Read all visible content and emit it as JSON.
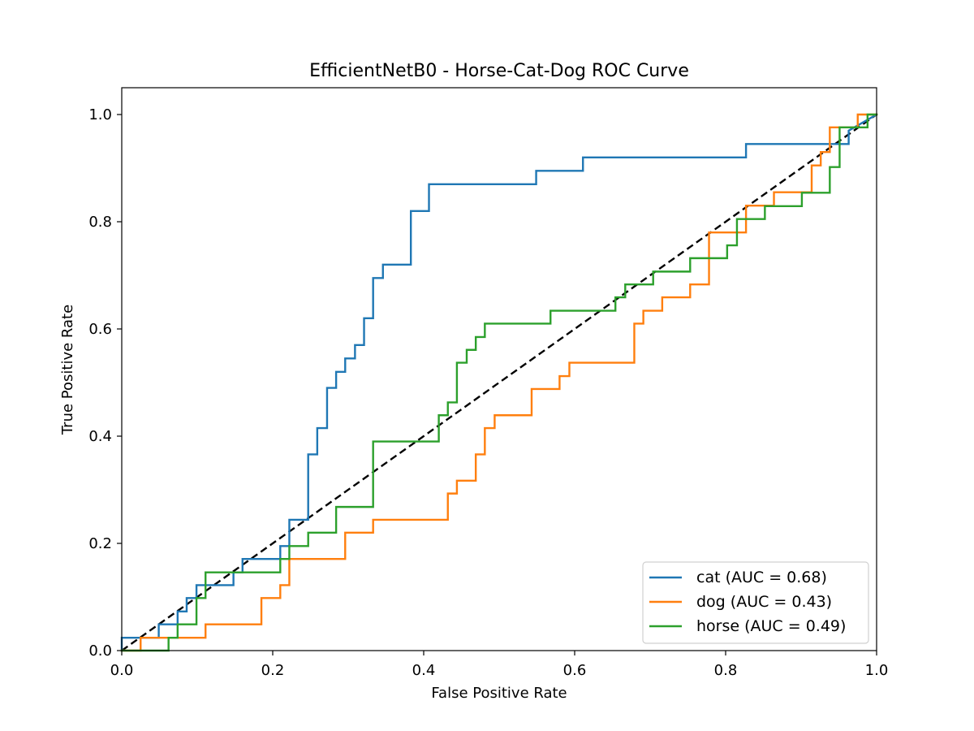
{
  "chart_data": {
    "type": "line",
    "title": "EfficientNetB0 - Horse-Cat-Dog ROC Curve",
    "xlabel": "False Positive Rate",
    "ylabel": "True Positive Rate",
    "xlim": [
      0.0,
      1.0
    ],
    "ylim": [
      0.0,
      1.05
    ],
    "xticks": [
      "0.0",
      "0.2",
      "0.4",
      "0.6",
      "0.8",
      "1.0"
    ],
    "yticks": [
      "0.0",
      "0.2",
      "0.4",
      "0.6",
      "0.8",
      "1.0"
    ],
    "grid": false,
    "legend_position": "lower-right",
    "reference_line": {
      "x": [
        0,
        1
      ],
      "y": [
        0,
        1
      ],
      "color": "#000000",
      "dashed": true
    },
    "series": [
      {
        "name": "cat (AUC = 0.68)",
        "color": "#1f77b4",
        "x": [
          0.0,
          0.0,
          0.049,
          0.049,
          0.074,
          0.074,
          0.086,
          0.086,
          0.099,
          0.099,
          0.148,
          0.148,
          0.16,
          0.16,
          0.21,
          0.21,
          0.222,
          0.222,
          0.247,
          0.247,
          0.259,
          0.259,
          0.272,
          0.272,
          0.284,
          0.284,
          0.296,
          0.296,
          0.309,
          0.309,
          0.321,
          0.321,
          0.333,
          0.333,
          0.346,
          0.346,
          0.383,
          0.383,
          0.407,
          0.407,
          0.549,
          0.549,
          0.611,
          0.611,
          0.827,
          0.827,
          0.963,
          0.963,
          1.0
        ],
        "y": [
          0.0,
          0.024,
          0.024,
          0.049,
          0.049,
          0.073,
          0.073,
          0.098,
          0.098,
          0.122,
          0.122,
          0.146,
          0.146,
          0.171,
          0.171,
          0.195,
          0.195,
          0.244,
          0.244,
          0.366,
          0.366,
          0.415,
          0.415,
          0.49,
          0.49,
          0.52,
          0.52,
          0.545,
          0.545,
          0.57,
          0.57,
          0.62,
          0.62,
          0.695,
          0.695,
          0.72,
          0.72,
          0.82,
          0.82,
          0.87,
          0.87,
          0.895,
          0.895,
          0.92,
          0.92,
          0.945,
          0.945,
          0.97,
          1.0
        ]
      },
      {
        "name": "dog (AUC = 0.43)",
        "color": "#ff7f0e",
        "x": [
          0.0,
          0.025,
          0.025,
          0.111,
          0.111,
          0.185,
          0.185,
          0.21,
          0.21,
          0.222,
          0.222,
          0.296,
          0.296,
          0.333,
          0.333,
          0.432,
          0.432,
          0.444,
          0.444,
          0.469,
          0.469,
          0.481,
          0.481,
          0.494,
          0.494,
          0.543,
          0.543,
          0.58,
          0.58,
          0.593,
          0.593,
          0.679,
          0.679,
          0.691,
          0.691,
          0.716,
          0.716,
          0.753,
          0.753,
          0.778,
          0.778,
          0.827,
          0.827,
          0.864,
          0.864,
          0.914,
          0.914,
          0.926,
          0.926,
          0.938,
          0.938,
          0.975,
          0.975,
          1.0
        ],
        "y": [
          0.0,
          0.0,
          0.024,
          0.024,
          0.049,
          0.049,
          0.098,
          0.098,
          0.122,
          0.122,
          0.171,
          0.171,
          0.22,
          0.22,
          0.244,
          0.244,
          0.293,
          0.293,
          0.317,
          0.317,
          0.366,
          0.366,
          0.415,
          0.415,
          0.439,
          0.439,
          0.488,
          0.488,
          0.512,
          0.512,
          0.537,
          0.537,
          0.61,
          0.61,
          0.634,
          0.634,
          0.659,
          0.659,
          0.683,
          0.683,
          0.78,
          0.78,
          0.83,
          0.83,
          0.855,
          0.855,
          0.905,
          0.905,
          0.93,
          0.93,
          0.976,
          0.976,
          1.0,
          1.0
        ]
      },
      {
        "name": "horse (AUC = 0.49)",
        "color": "#2ca02c",
        "x": [
          0.0,
          0.062,
          0.062,
          0.074,
          0.074,
          0.099,
          0.099,
          0.111,
          0.111,
          0.21,
          0.21,
          0.222,
          0.222,
          0.247,
          0.247,
          0.284,
          0.284,
          0.333,
          0.333,
          0.42,
          0.42,
          0.432,
          0.432,
          0.444,
          0.444,
          0.457,
          0.457,
          0.469,
          0.469,
          0.481,
          0.481,
          0.568,
          0.568,
          0.654,
          0.654,
          0.667,
          0.667,
          0.704,
          0.704,
          0.753,
          0.753,
          0.802,
          0.802,
          0.815,
          0.815,
          0.852,
          0.852,
          0.901,
          0.901,
          0.938,
          0.938,
          0.951,
          0.951,
          0.963,
          0.963,
          0.988,
          0.988,
          1.0
        ],
        "y": [
          0.0,
          0.0,
          0.024,
          0.024,
          0.049,
          0.049,
          0.098,
          0.098,
          0.146,
          0.146,
          0.171,
          0.171,
          0.195,
          0.195,
          0.22,
          0.22,
          0.268,
          0.268,
          0.39,
          0.39,
          0.439,
          0.439,
          0.463,
          0.463,
          0.537,
          0.537,
          0.561,
          0.561,
          0.585,
          0.585,
          0.61,
          0.61,
          0.634,
          0.634,
          0.659,
          0.659,
          0.683,
          0.683,
          0.707,
          0.707,
          0.732,
          0.732,
          0.756,
          0.756,
          0.805,
          0.805,
          0.829,
          0.829,
          0.854,
          0.854,
          0.902,
          0.902,
          0.976,
          0.976,
          0.976,
          0.976,
          1.0,
          1.0
        ]
      }
    ]
  }
}
